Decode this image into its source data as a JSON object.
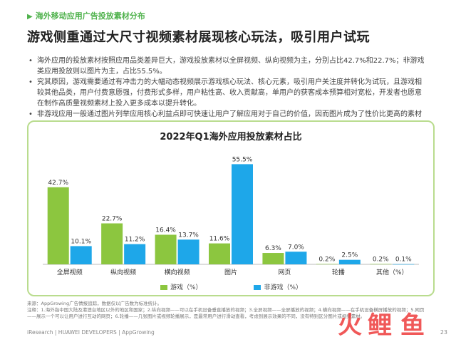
{
  "section_tag": "海外移动应用广告投放素材分布",
  "headline": "游戏侧重通过大尺寸视频素材展现核心玩法，吸引用户试玩",
  "bullets": [
    "海外应用的投放素材按照应用品类差异巨大，游戏投放素材以全屏视频、纵向视频为主，分别占比42.7%和22.7%；非游戏类应用投放则以图片为主，占比55.5%。",
    "究其原因，游戏需要通过有冲击力的大幅动态视频展示游戏核心玩法、核心元素，吸引用户关注度并转化为试玩，且游戏相较其他品类，用户付费意愿强，付费形式多样，用户粘性高、收入贡献高，单用户的获客成本预算相对宽松，开发者也愿意在制作高质量视频素材上投入更多成本以提升转化。",
    "非游戏应用一般通过图片列举应用核心利益点即可快速让用户了解应用对于自己的价值，因而图片成为了性价比更高的素材形式选择。"
  ],
  "chart_data": {
    "type": "bar",
    "title": "2022年Q1海外应用投放素材占比",
    "categories": [
      "全屏视频",
      "纵向视频",
      "横向视频",
      "图片",
      "网页",
      "轮播",
      "其他（%）"
    ],
    "series": [
      {
        "name": "游戏（%）",
        "values": [
          42.7,
          22.7,
          16.4,
          11.6,
          6.3,
          0.2,
          0.2
        ],
        "labels": [
          "42.7%",
          "22.7%",
          "16.4%",
          "11.6%",
          "6.3%",
          "0.2%",
          "0.2%"
        ]
      },
      {
        "name": "非游戏（%）",
        "values": [
          10.1,
          11.2,
          13.7,
          55.5,
          7.0,
          2.5,
          0.1
        ],
        "labels": [
          "10.1%",
          "11.2%",
          "13.7%",
          "55.5%",
          "7.0%",
          "2.5%",
          "0.1%"
        ]
      }
    ],
    "ylim": [
      0,
      60
    ],
    "grid": false,
    "legend": "bottom",
    "colors": [
      "#8cc63f",
      "#1ea7e9"
    ]
  },
  "footnote": {
    "source": "来源：AppGrowing广告情报追踪，数据仅以广告数为标准统计。",
    "note": "注释：1.海外指中国大陆及港澳台地区以外的地区和国家；2.纵向视频——可以在手机设备垂直播放的视频；3.全屏视频——全屏播放的视频；4.横向视频——在手机设备横屏播放的视频；5.网页——展示一个可以让用户进行互动的网页；6.轮播——几张图片或视频轮播展示，是最常用户进行滑动查看，考虑到展示效果的不同，没有特别区分图片或视频素材。"
  },
  "footer": "iResearch | HUAWEI DEVELOPERS | AppGrowing",
  "page_number": "23",
  "watermark_text": "火鲤鱼"
}
